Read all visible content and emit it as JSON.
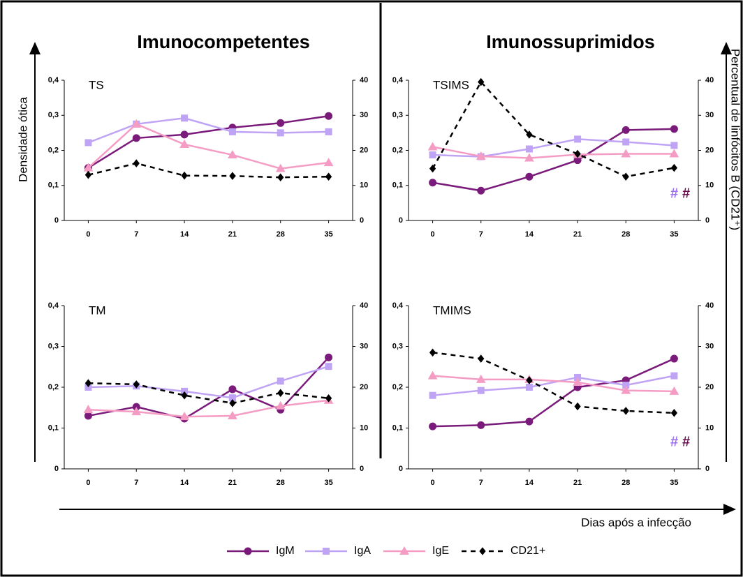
{
  "column_titles": [
    "Imunocompetentes",
    "Imunossuprimidos"
  ],
  "y_label": "Densidade ótica",
  "y2_label": "Percentual de linfócitos B (CD21⁺)",
  "x_label": "Dias após a infecção",
  "chart_data": [
    {
      "type": "line",
      "title": "TS",
      "categories": [
        "0",
        "7",
        "14",
        "21",
        "28",
        "35"
      ],
      "ylim": [
        0,
        0.4
      ],
      "yticks": [
        0,
        {
          "value": 0.1,
          "label": "0,1"
        },
        {
          "value": 0.2,
          "label": "0,2"
        },
        {
          "value": 0.3,
          "label": "0,3"
        },
        {
          "value": 0.4,
          "label": "0,4"
        }
      ],
      "y2lim": [
        0,
        40
      ],
      "y2ticks": [
        0,
        10,
        20,
        30,
        40
      ],
      "series": [
        {
          "name": "IgM",
          "color": "#7a1a7a",
          "marker": "circle",
          "values": [
            0.15,
            0.235,
            0.245,
            0.265,
            0.278,
            0.298
          ]
        },
        {
          "name": "IgA",
          "color": "#bfa3f5",
          "marker": "square",
          "values": [
            0.222,
            0.275,
            0.292,
            0.253,
            0.25,
            0.253
          ]
        },
        {
          "name": "IgE",
          "color": "#f59cc4",
          "marker": "triangle",
          "values": [
            0.15,
            0.275,
            0.217,
            0.187,
            0.148,
            0.165
          ]
        },
        {
          "name": "CD21+",
          "color": "#000000",
          "marker": "diamond",
          "dash": true,
          "axis": "y2",
          "values": [
            13,
            16.3,
            12.8,
            12.7,
            12.3,
            12.5
          ]
        }
      ]
    },
    {
      "type": "line",
      "title": "TSIMS",
      "categories": [
        "0",
        "7",
        "14",
        "21",
        "28",
        "35"
      ],
      "ylim": [
        0,
        0.4
      ],
      "yticks": [
        0,
        {
          "value": 0.1,
          "label": "0,1"
        },
        {
          "value": 0.2,
          "label": "0,2"
        },
        {
          "value": 0.3,
          "label": "0,3"
        },
        {
          "value": 0.4,
          "label": "0,4"
        }
      ],
      "y2lim": [
        0,
        40
      ],
      "y2ticks": [
        0,
        10,
        20,
        30,
        40
      ],
      "series": [
        {
          "name": "IgM",
          "color": "#7a1a7a",
          "marker": "circle",
          "values": [
            0.108,
            0.085,
            0.125,
            0.172,
            0.258,
            0.261
          ]
        },
        {
          "name": "IgA",
          "color": "#bfa3f5",
          "marker": "square",
          "values": [
            0.187,
            0.182,
            0.204,
            0.232,
            0.224,
            0.214
          ]
        },
        {
          "name": "IgE",
          "color": "#f59cc4",
          "marker": "triangle",
          "values": [
            0.21,
            0.183,
            0.178,
            0.188,
            0.19,
            0.19
          ]
        },
        {
          "name": "CD21+",
          "color": "#000000",
          "marker": "diamond",
          "dash": true,
          "axis": "y2",
          "values": [
            14.8,
            39.5,
            24.5,
            19,
            12.5,
            15
          ]
        }
      ],
      "annotations": [
        {
          "text": "#",
          "color": "#9b6ff0"
        },
        {
          "text": "#",
          "color": "#6a1050"
        }
      ]
    },
    {
      "type": "line",
      "title": "TM",
      "categories": [
        "0",
        "7",
        "14",
        "21",
        "28",
        "35"
      ],
      "ylim": [
        0,
        0.4
      ],
      "yticks": [
        0,
        {
          "value": 0.1,
          "label": "0,1"
        },
        {
          "value": 0.2,
          "label": "0,2"
        },
        {
          "value": 0.3,
          "label": "0,3"
        },
        {
          "value": 0.4,
          "label": "0,4"
        }
      ],
      "y2lim": [
        0,
        40
      ],
      "y2ticks": [
        0,
        10,
        20,
        30,
        40
      ],
      "series": [
        {
          "name": "IgM",
          "color": "#7a1a7a",
          "marker": "circle",
          "values": [
            0.13,
            0.152,
            0.123,
            0.195,
            0.145,
            0.273
          ]
        },
        {
          "name": "IgA",
          "color": "#bfa3f5",
          "marker": "square",
          "values": [
            0.2,
            0.203,
            0.19,
            0.174,
            0.215,
            0.251
          ]
        },
        {
          "name": "IgE",
          "color": "#f59cc4",
          "marker": "triangle",
          "values": [
            0.145,
            0.14,
            0.128,
            0.13,
            0.154,
            0.168
          ]
        },
        {
          "name": "CD21+",
          "color": "#000000",
          "marker": "diamond",
          "dash": true,
          "axis": "y2",
          "values": [
            21,
            20.7,
            18,
            16.1,
            18.6,
            17.3
          ]
        }
      ]
    },
    {
      "type": "line",
      "title": "TMIMS",
      "categories": [
        "0",
        "7",
        "14",
        "21",
        "28",
        "35"
      ],
      "ylim": [
        0,
        0.4
      ],
      "yticks": [
        0,
        {
          "value": 0.1,
          "label": "0,1"
        },
        {
          "value": 0.2,
          "label": "0,2"
        },
        {
          "value": 0.3,
          "label": "0,3"
        },
        {
          "value": 0.4,
          "label": "0,4"
        }
      ],
      "y2lim": [
        0,
        40
      ],
      "y2ticks": [
        0,
        10,
        20,
        30,
        40
      ],
      "series": [
        {
          "name": "IgM",
          "color": "#7a1a7a",
          "marker": "circle",
          "values": [
            0.104,
            0.107,
            0.116,
            0.2,
            0.217,
            0.27
          ]
        },
        {
          "name": "IgA",
          "color": "#bfa3f5",
          "marker": "square",
          "values": [
            0.18,
            0.192,
            0.2,
            0.224,
            0.205,
            0.228
          ]
        },
        {
          "name": "IgE",
          "color": "#f59cc4",
          "marker": "triangle",
          "values": [
            0.228,
            0.219,
            0.219,
            0.212,
            0.192,
            0.19
          ]
        },
        {
          "name": "CD21+",
          "color": "#000000",
          "marker": "diamond",
          "dash": true,
          "axis": "y2",
          "values": [
            28.5,
            27,
            21.7,
            15.3,
            14.2,
            13.7
          ]
        }
      ],
      "annotations": [
        {
          "text": "#",
          "color": "#9b6ff0"
        },
        {
          "text": "#",
          "color": "#6a1050"
        }
      ]
    }
  ]
}
